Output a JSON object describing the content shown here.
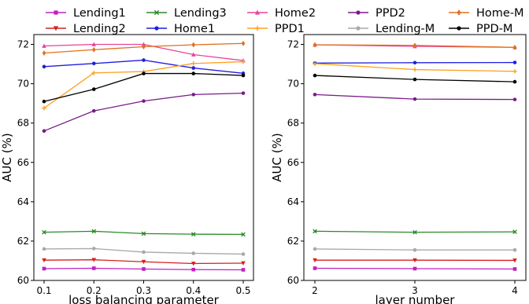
{
  "chart_data": [
    {
      "type": "line",
      "xlabel": "loss balancing parameter",
      "ylabel": "AUC (%)",
      "x": [
        0.1,
        0.2,
        0.3,
        0.4,
        0.5
      ],
      "xticks": [
        "0.1",
        "0.2",
        "0.3",
        "0.4",
        "0.5"
      ],
      "xlim": [
        0.1,
        0.5
      ],
      "ylim": [
        60,
        72.5
      ],
      "yticks": [
        "60",
        "62",
        "64",
        "66",
        "68",
        "70",
        "72"
      ],
      "grid": false,
      "series": [
        {
          "name": "Lending1",
          "color": "#c020c0",
          "marker": "square",
          "values": [
            60.6,
            60.62,
            60.58,
            60.55,
            60.54
          ]
        },
        {
          "name": "Lending2",
          "color": "#d62020",
          "marker": "triangle-down",
          "values": [
            61.03,
            61.05,
            60.95,
            60.86,
            60.88
          ]
        },
        {
          "name": "Lending3",
          "color": "#2a8a2a",
          "marker": "x",
          "values": [
            62.45,
            62.5,
            62.38,
            62.35,
            62.34
          ]
        },
        {
          "name": "Home1",
          "color": "#1f1fe0",
          "marker": "circle",
          "values": [
            70.87,
            71.03,
            71.2,
            70.8,
            70.53
          ]
        },
        {
          "name": "Home2",
          "color": "#e8449a",
          "marker": "triangle-up",
          "values": [
            71.92,
            72.0,
            72.0,
            71.48,
            71.18
          ]
        },
        {
          "name": "PPD1",
          "color": "#ffa020",
          "marker": "plus",
          "values": [
            68.76,
            70.55,
            70.62,
            71.03,
            71.12
          ]
        },
        {
          "name": "PPD2",
          "color": "#7a1a8a",
          "marker": "circle",
          "values": [
            67.6,
            68.62,
            69.12,
            69.45,
            69.52
          ]
        },
        {
          "name": "Lending-M",
          "color": "#a9a9a9",
          "marker": "circle",
          "values": [
            61.6,
            61.62,
            61.44,
            61.38,
            61.34
          ]
        },
        {
          "name": "Home-M",
          "color": "#e07020",
          "marker": "diamond",
          "values": [
            71.56,
            71.73,
            71.88,
            71.98,
            72.05
          ]
        },
        {
          "name": "PPD-M",
          "color": "#000000",
          "marker": "circle",
          "values": [
            69.1,
            69.72,
            70.52,
            70.52,
            70.42
          ]
        }
      ]
    },
    {
      "type": "line",
      "xlabel": "layer number",
      "ylabel": "AUC (%)",
      "x": [
        2,
        3,
        4
      ],
      "xticks": [
        "2",
        "3",
        "4"
      ],
      "xlim": [
        2,
        4
      ],
      "ylim": [
        60,
        72.5
      ],
      "yticks": [
        "60",
        "62",
        "64",
        "66",
        "68",
        "70",
        "72"
      ],
      "grid": false,
      "series": [
        {
          "name": "Lending1",
          "color": "#c020c0",
          "marker": "square",
          "values": [
            60.62,
            60.6,
            60.58
          ]
        },
        {
          "name": "Lending2",
          "color": "#d62020",
          "marker": "triangle-down",
          "values": [
            61.03,
            61.03,
            61.02
          ]
        },
        {
          "name": "Lending3",
          "color": "#2a8a2a",
          "marker": "x",
          "values": [
            62.5,
            62.45,
            62.47
          ]
        },
        {
          "name": "Home1",
          "color": "#1f1fe0",
          "marker": "circle",
          "values": [
            71.05,
            71.07,
            71.08
          ]
        },
        {
          "name": "Home2",
          "color": "#e8449a",
          "marker": "triangle-up",
          "values": [
            71.98,
            71.9,
            71.85
          ]
        },
        {
          "name": "PPD1",
          "color": "#ffa020",
          "marker": "plus",
          "values": [
            71.02,
            70.72,
            70.63
          ]
        },
        {
          "name": "PPD2",
          "color": "#7a1a8a",
          "marker": "circle",
          "values": [
            69.45,
            69.22,
            69.2
          ]
        },
        {
          "name": "Lending-M",
          "color": "#a9a9a9",
          "marker": "circle",
          "values": [
            61.6,
            61.55,
            61.55
          ]
        },
        {
          "name": "Home-M",
          "color": "#e07020",
          "marker": "diamond",
          "values": [
            71.98,
            71.95,
            71.85
          ]
        },
        {
          "name": "PPD-M",
          "color": "#000000",
          "marker": "circle",
          "values": [
            70.42,
            70.22,
            70.1
          ]
        }
      ]
    }
  ],
  "legend": {
    "placement": "top",
    "entries": [
      "Lending1",
      "Lending3",
      "Home2",
      "PPD2",
      "Home-M",
      "Lending2",
      "Home1",
      "PPD1",
      "Lending-M",
      "PPD-M"
    ]
  }
}
